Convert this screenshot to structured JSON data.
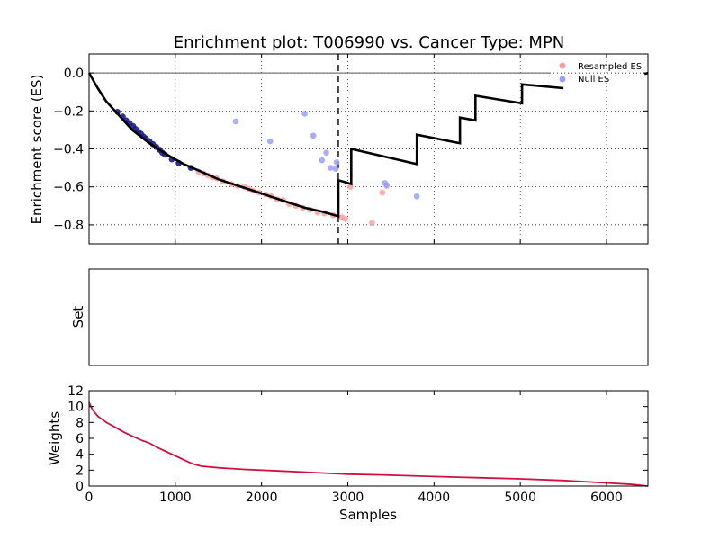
{
  "title": "Enrichment plot: T006990 vs. Cancer Type: MPN",
  "colors": {
    "es_line": "#000000",
    "resampled": "#ff9d9d",
    "null_es": "#9d9dff",
    "dense_points": "#1a1a8c",
    "weights_line": "#d01040"
  },
  "chart_data": [
    {
      "type": "line",
      "panel": "enrichment",
      "ylabel": "Enrichment score (ES)",
      "xlim": [
        0,
        6480
      ],
      "ylim": [
        -0.9,
        0.1
      ],
      "yticks": [
        0.0,
        -0.2,
        -0.4,
        -0.6,
        -0.8
      ],
      "ytick_labels": [
        "0.0",
        "−0.2",
        "−0.4",
        "−0.6",
        "−0.8"
      ],
      "xticks": [
        1000,
        2000,
        3000,
        4000,
        5000,
        6000
      ],
      "grid": true,
      "legend_position": "top-right",
      "legend": [
        "Resampled ES",
        "Null ES"
      ],
      "vline_x": 2890,
      "zero_line": [
        0,
        5350
      ],
      "es_curve": [
        [
          0,
          0.0
        ],
        [
          100,
          -0.08
        ],
        [
          200,
          -0.15
        ],
        [
          300,
          -0.2
        ],
        [
          400,
          -0.25
        ],
        [
          500,
          -0.3
        ],
        [
          700,
          -0.37
        ],
        [
          900,
          -0.43
        ],
        [
          1100,
          -0.48
        ],
        [
          1300,
          -0.52
        ],
        [
          1500,
          -0.56
        ],
        [
          1700,
          -0.59
        ],
        [
          1900,
          -0.62
        ],
        [
          2100,
          -0.65
        ],
        [
          2300,
          -0.68
        ],
        [
          2500,
          -0.71
        ],
        [
          2700,
          -0.73
        ],
        [
          2890,
          -0.755
        ],
        [
          2890,
          -0.565
        ],
        [
          3040,
          -0.585
        ],
        [
          3040,
          -0.4
        ],
        [
          3800,
          -0.48
        ],
        [
          3800,
          -0.325
        ],
        [
          4300,
          -0.37
        ],
        [
          4300,
          -0.235
        ],
        [
          4480,
          -0.25
        ],
        [
          4480,
          -0.12
        ],
        [
          5020,
          -0.16
        ],
        [
          5020,
          -0.06
        ],
        [
          5500,
          -0.08
        ]
      ],
      "es_tail": [
        [
          6440,
          -0.005
        ],
        [
          6480,
          0.0
        ]
      ],
      "resampled_es": [
        [
          1270,
          -0.52
        ],
        [
          1330,
          -0.53
        ],
        [
          1380,
          -0.54
        ],
        [
          1430,
          -0.55
        ],
        [
          1480,
          -0.555
        ],
        [
          1550,
          -0.57
        ],
        [
          1650,
          -0.585
        ],
        [
          1720,
          -0.595
        ],
        [
          1800,
          -0.6
        ],
        [
          1850,
          -0.61
        ],
        [
          1900,
          -0.62
        ],
        [
          1970,
          -0.63
        ],
        [
          2050,
          -0.64
        ],
        [
          2110,
          -0.65
        ],
        [
          2180,
          -0.665
        ],
        [
          2250,
          -0.67
        ],
        [
          2320,
          -0.69
        ],
        [
          2400,
          -0.7
        ],
        [
          2480,
          -0.71
        ],
        [
          2560,
          -0.72
        ],
        [
          2650,
          -0.735
        ],
        [
          2730,
          -0.74
        ],
        [
          2830,
          -0.75
        ],
        [
          2930,
          -0.76
        ],
        [
          2970,
          -0.77
        ],
        [
          3030,
          -0.6
        ],
        [
          3280,
          -0.79
        ],
        [
          3400,
          -0.63
        ],
        [
          3450,
          -0.595
        ]
      ],
      "null_es": [
        [
          1700,
          -0.255
        ],
        [
          2100,
          -0.36
        ],
        [
          2500,
          -0.215
        ],
        [
          2600,
          -0.33
        ],
        [
          2700,
          -0.46
        ],
        [
          2750,
          -0.42
        ],
        [
          2800,
          -0.5
        ],
        [
          2860,
          -0.505
        ],
        [
          2870,
          -0.47
        ],
        [
          3430,
          -0.58
        ],
        [
          3450,
          -0.59
        ],
        [
          3800,
          -0.65
        ]
      ],
      "dense_points": [
        [
          330,
          -0.205
        ],
        [
          390,
          -0.23
        ],
        [
          430,
          -0.25
        ],
        [
          470,
          -0.265
        ],
        [
          510,
          -0.28
        ],
        [
          540,
          -0.295
        ],
        [
          570,
          -0.31
        ],
        [
          600,
          -0.32
        ],
        [
          630,
          -0.335
        ],
        [
          660,
          -0.345
        ],
        [
          700,
          -0.36
        ],
        [
          740,
          -0.375
        ],
        [
          780,
          -0.39
        ],
        [
          820,
          -0.405
        ],
        [
          850,
          -0.42
        ],
        [
          880,
          -0.43
        ],
        [
          960,
          -0.455
        ],
        [
          1040,
          -0.475
        ],
        [
          1180,
          -0.5
        ]
      ]
    },
    {
      "type": "line",
      "panel": "set",
      "ylabel": "Set",
      "xlim": [
        0,
        6480
      ]
    },
    {
      "type": "line",
      "panel": "weights",
      "ylabel": "Weights",
      "xlabel": "Samples",
      "xlim": [
        0,
        6480
      ],
      "ylim": [
        0,
        12
      ],
      "yticks": [
        0,
        2,
        4,
        6,
        8,
        10,
        12
      ],
      "xticks": [
        0,
        1000,
        2000,
        3000,
        4000,
        5000,
        6000
      ],
      "weights": [
        [
          0,
          10.5
        ],
        [
          40,
          9.6
        ],
        [
          100,
          8.8
        ],
        [
          200,
          8.0
        ],
        [
          300,
          7.4
        ],
        [
          400,
          6.8
        ],
        [
          500,
          6.3
        ],
        [
          600,
          5.8
        ],
        [
          700,
          5.4
        ],
        [
          800,
          4.8
        ],
        [
          900,
          4.3
        ],
        [
          1000,
          3.8
        ],
        [
          1100,
          3.3
        ],
        [
          1200,
          2.8
        ],
        [
          1300,
          2.5
        ],
        [
          1500,
          2.3
        ],
        [
          1800,
          2.1
        ],
        [
          2200,
          1.9
        ],
        [
          2600,
          1.7
        ],
        [
          3000,
          1.5
        ],
        [
          3400,
          1.4
        ],
        [
          4000,
          1.2
        ],
        [
          4500,
          1.05
        ],
        [
          5000,
          0.9
        ],
        [
          5500,
          0.7
        ],
        [
          6000,
          0.4
        ],
        [
          6300,
          0.2
        ],
        [
          6480,
          0.0
        ]
      ]
    }
  ]
}
